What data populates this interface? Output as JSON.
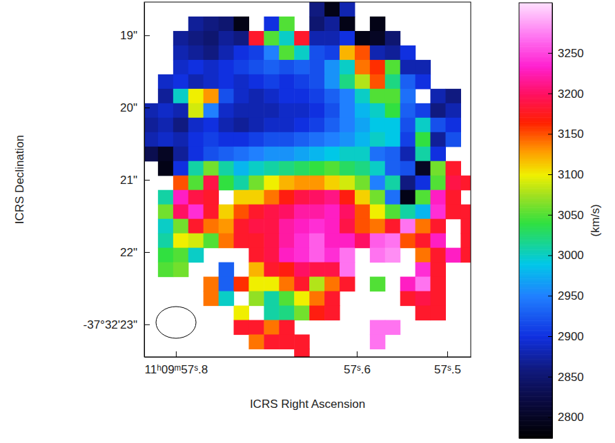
{
  "chart_data": {
    "type": "heatmap",
    "xlabel": "ICRS Right Ascension",
    "ylabel": "ICRS Declination",
    "xlim": [
      57.835,
      57.474
    ],
    "ylim": [
      18.54,
      23.45
    ],
    "xticks": [
      {
        "value": 57.8,
        "label": "11ʰ09ᵐ57ˢ.8"
      },
      {
        "value": 57.6,
        "label": "57ˢ.6"
      },
      {
        "value": 57.5,
        "label": "57ˢ.5"
      }
    ],
    "yticks": [
      {
        "value": 19,
        "label": "19\""
      },
      {
        "value": 20,
        "label": "20\""
      },
      {
        "value": 21,
        "label": "21\""
      },
      {
        "value": 22,
        "label": "22\""
      },
      {
        "value": 23,
        "label": "-37°32'23\""
      }
    ],
    "x": [
      57.8282,
      57.8115,
      57.7947,
      57.778,
      57.7613,
      57.7445,
      57.7278,
      57.7111,
      57.6943,
      57.6776,
      57.6609,
      57.6441,
      57.6274,
      57.6107,
      57.5939,
      57.5772,
      57.5605,
      57.5437,
      57.527,
      57.5103,
      57.4935,
      57.4768
    ],
    "y": [
      18.64,
      18.84,
      19.04,
      19.24,
      19.44,
      19.64,
      19.84,
      20.04,
      20.24,
      20.44,
      20.64,
      20.84,
      21.04,
      21.24,
      21.44,
      21.64,
      21.84,
      22.04,
      22.24,
      22.44,
      22.64,
      22.84,
      23.04,
      23.24,
      23.44
    ],
    "values": [
      [
        null,
        null,
        null,
        null,
        null,
        null,
        null,
        null,
        null,
        null,
        null,
        2860,
        2790,
        2880,
        null,
        null,
        null,
        null,
        null,
        null,
        null,
        null
      ],
      [
        null,
        null,
        null,
        2870,
        2860,
        2850,
        2790,
        null,
        2900,
        3050,
        null,
        2850,
        2870,
        2790,
        null,
        2790,
        null,
        null,
        null,
        null,
        null,
        null
      ],
      [
        null,
        null,
        2870,
        2860,
        2850,
        2870,
        2860,
        3180,
        3050,
        3000,
        3180,
        2880,
        2880,
        2900,
        2790,
        2800,
        2850,
        null,
        null,
        null,
        null,
        null
      ],
      [
        null,
        null,
        2880,
        2870,
        2860,
        2880,
        2900,
        2910,
        2950,
        3050,
        3000,
        2920,
        2910,
        3120,
        3150,
        2880,
        2870,
        2900,
        null,
        null,
        null,
        null
      ],
      [
        null,
        null,
        2890,
        2900,
        2890,
        2900,
        2910,
        2920,
        2930,
        2920,
        2930,
        2920,
        2960,
        3000,
        3140,
        3160,
        3050,
        2880,
        2880,
        null,
        null,
        null
      ],
      [
        null,
        2890,
        2900,
        2880,
        2890,
        2900,
        2890,
        2900,
        2910,
        2900,
        2910,
        2920,
        2960,
        3020,
        3080,
        3150,
        3020,
        2930,
        2900,
        null,
        null,
        null
      ],
      [
        null,
        2870,
        3000,
        3100,
        3130,
        2920,
        2890,
        2880,
        2890,
        2900,
        2900,
        2910,
        2930,
        2950,
        3000,
        3050,
        3050,
        2940,
        null,
        2880,
        2860,
        null
      ],
      [
        2880,
        2890,
        2880,
        3090,
        2950,
        2890,
        2880,
        2880,
        2880,
        2890,
        2890,
        2900,
        2920,
        2950,
        2980,
        3000,
        3040,
        2930,
        2910,
        2860,
        2880,
        null
      ],
      [
        2870,
        2880,
        2860,
        2890,
        2900,
        2880,
        2870,
        2880,
        2890,
        2890,
        2900,
        2910,
        2930,
        2950,
        2970,
        2990,
        2990,
        2920,
        3000,
        2920,
        2900,
        null
      ],
      [
        2880,
        2890,
        2880,
        2900,
        2910,
        2900,
        2900,
        2910,
        2920,
        2920,
        2930,
        2940,
        2950,
        2960,
        2980,
        3000,
        2990,
        2910,
        3040,
        2870,
        2920,
        null
      ],
      [
        2830,
        2800,
        2870,
        2900,
        2920,
        2930,
        2940,
        2950,
        2960,
        2960,
        2970,
        2980,
        2990,
        3000,
        3000,
        2940,
        2930,
        2880,
        3010,
        2900,
        null,
        null
      ],
      [
        null,
        2790,
        2900,
        3010,
        3060,
        3010,
        2980,
        3000,
        3010,
        3020,
        3030,
        3040,
        3050,
        3030,
        3020,
        3000,
        2930,
        2920,
        2800,
        3060,
        3180,
        null
      ],
      [
        null,
        null,
        3150,
        3050,
        3190,
        3040,
        3010,
        3060,
        3100,
        3120,
        3130,
        3130,
        3110,
        3090,
        3060,
        2950,
        3010,
        2860,
        2900,
        3050,
        3190,
        3180
      ],
      [
        null,
        3010,
        3230,
        3190,
        3180,
        null,
        3110,
        3110,
        3140,
        3170,
        3190,
        3200,
        3210,
        3170,
        3110,
        3060,
        2940,
        2790,
        3050,
        3230,
        3180,
        null
      ],
      [
        null,
        3060,
        3200,
        3240,
        3180,
        3110,
        3150,
        3180,
        3190,
        3200,
        3220,
        3220,
        3230,
        3200,
        3150,
        3100,
        3050,
        3010,
        2980,
        3240,
        3180,
        3180
      ],
      [
        null,
        3000,
        3060,
        3180,
        3140,
        3130,
        3180,
        3190,
        3190,
        3220,
        3230,
        3240,
        3230,
        3190,
        3150,
        3140,
        3180,
        3270,
        3140,
        3180,
        null,
        3180
      ],
      [
        null,
        3010,
        3100,
        3090,
        3050,
        3140,
        3180,
        3180,
        3190,
        3220,
        3240,
        3260,
        3230,
        3230,
        3200,
        3260,
        3270,
        3150,
        3180,
        3230,
        null,
        3180
      ],
      [
        null,
        3040,
        3050,
        3000,
        null,
        null,
        null,
        3180,
        3190,
        3230,
        3240,
        3260,
        3240,
        3270,
        null,
        3270,
        3280,
        null,
        3140,
        3180,
        3230,
        3180
      ],
      [
        null,
        3050,
        3060,
        null,
        null,
        2930,
        null,
        3120,
        3180,
        3170,
        3200,
        3190,
        3190,
        3270,
        null,
        null,
        null,
        null,
        3240,
        3180,
        null,
        null
      ],
      [
        null,
        null,
        null,
        null,
        3140,
        2930,
        3160,
        3100,
        3100,
        3140,
        3180,
        3080,
        3140,
        3180,
        null,
        3050,
        null,
        3230,
        3270,
        3180,
        null,
        null
      ],
      [
        null,
        null,
        null,
        null,
        3140,
        3000,
        null,
        3070,
        3010,
        3050,
        3100,
        3140,
        3180,
        null,
        null,
        null,
        null,
        3180,
        3190,
        3180,
        null,
        null
      ],
      [
        null,
        null,
        null,
        null,
        null,
        null,
        3100,
        null,
        3010,
        3020,
        3060,
        3170,
        3180,
        null,
        null,
        null,
        null,
        null,
        3180,
        3180,
        null,
        null
      ],
      [
        null,
        null,
        null,
        null,
        null,
        null,
        3180,
        3180,
        3140,
        3180,
        null,
        null,
        null,
        null,
        null,
        3270,
        3270,
        null,
        null,
        null,
        null,
        null
      ],
      [
        null,
        null,
        null,
        null,
        null,
        null,
        null,
        3140,
        3180,
        3180,
        3180,
        null,
        null,
        null,
        null,
        3270,
        null,
        null,
        null,
        null,
        null,
        null
      ],
      [
        null,
        null,
        null,
        null,
        null,
        null,
        null,
        null,
        null,
        null,
        3180,
        null,
        null,
        null,
        null,
        null,
        null,
        null,
        null,
        null,
        null,
        null
      ]
    ],
    "colorbar": {
      "lim": [
        2774,
        3312
      ],
      "ticks": [
        2800,
        2850,
        2900,
        2950,
        3000,
        3050,
        3100,
        3150,
        3200,
        3250
      ],
      "label": "(km/s)"
    }
  }
}
